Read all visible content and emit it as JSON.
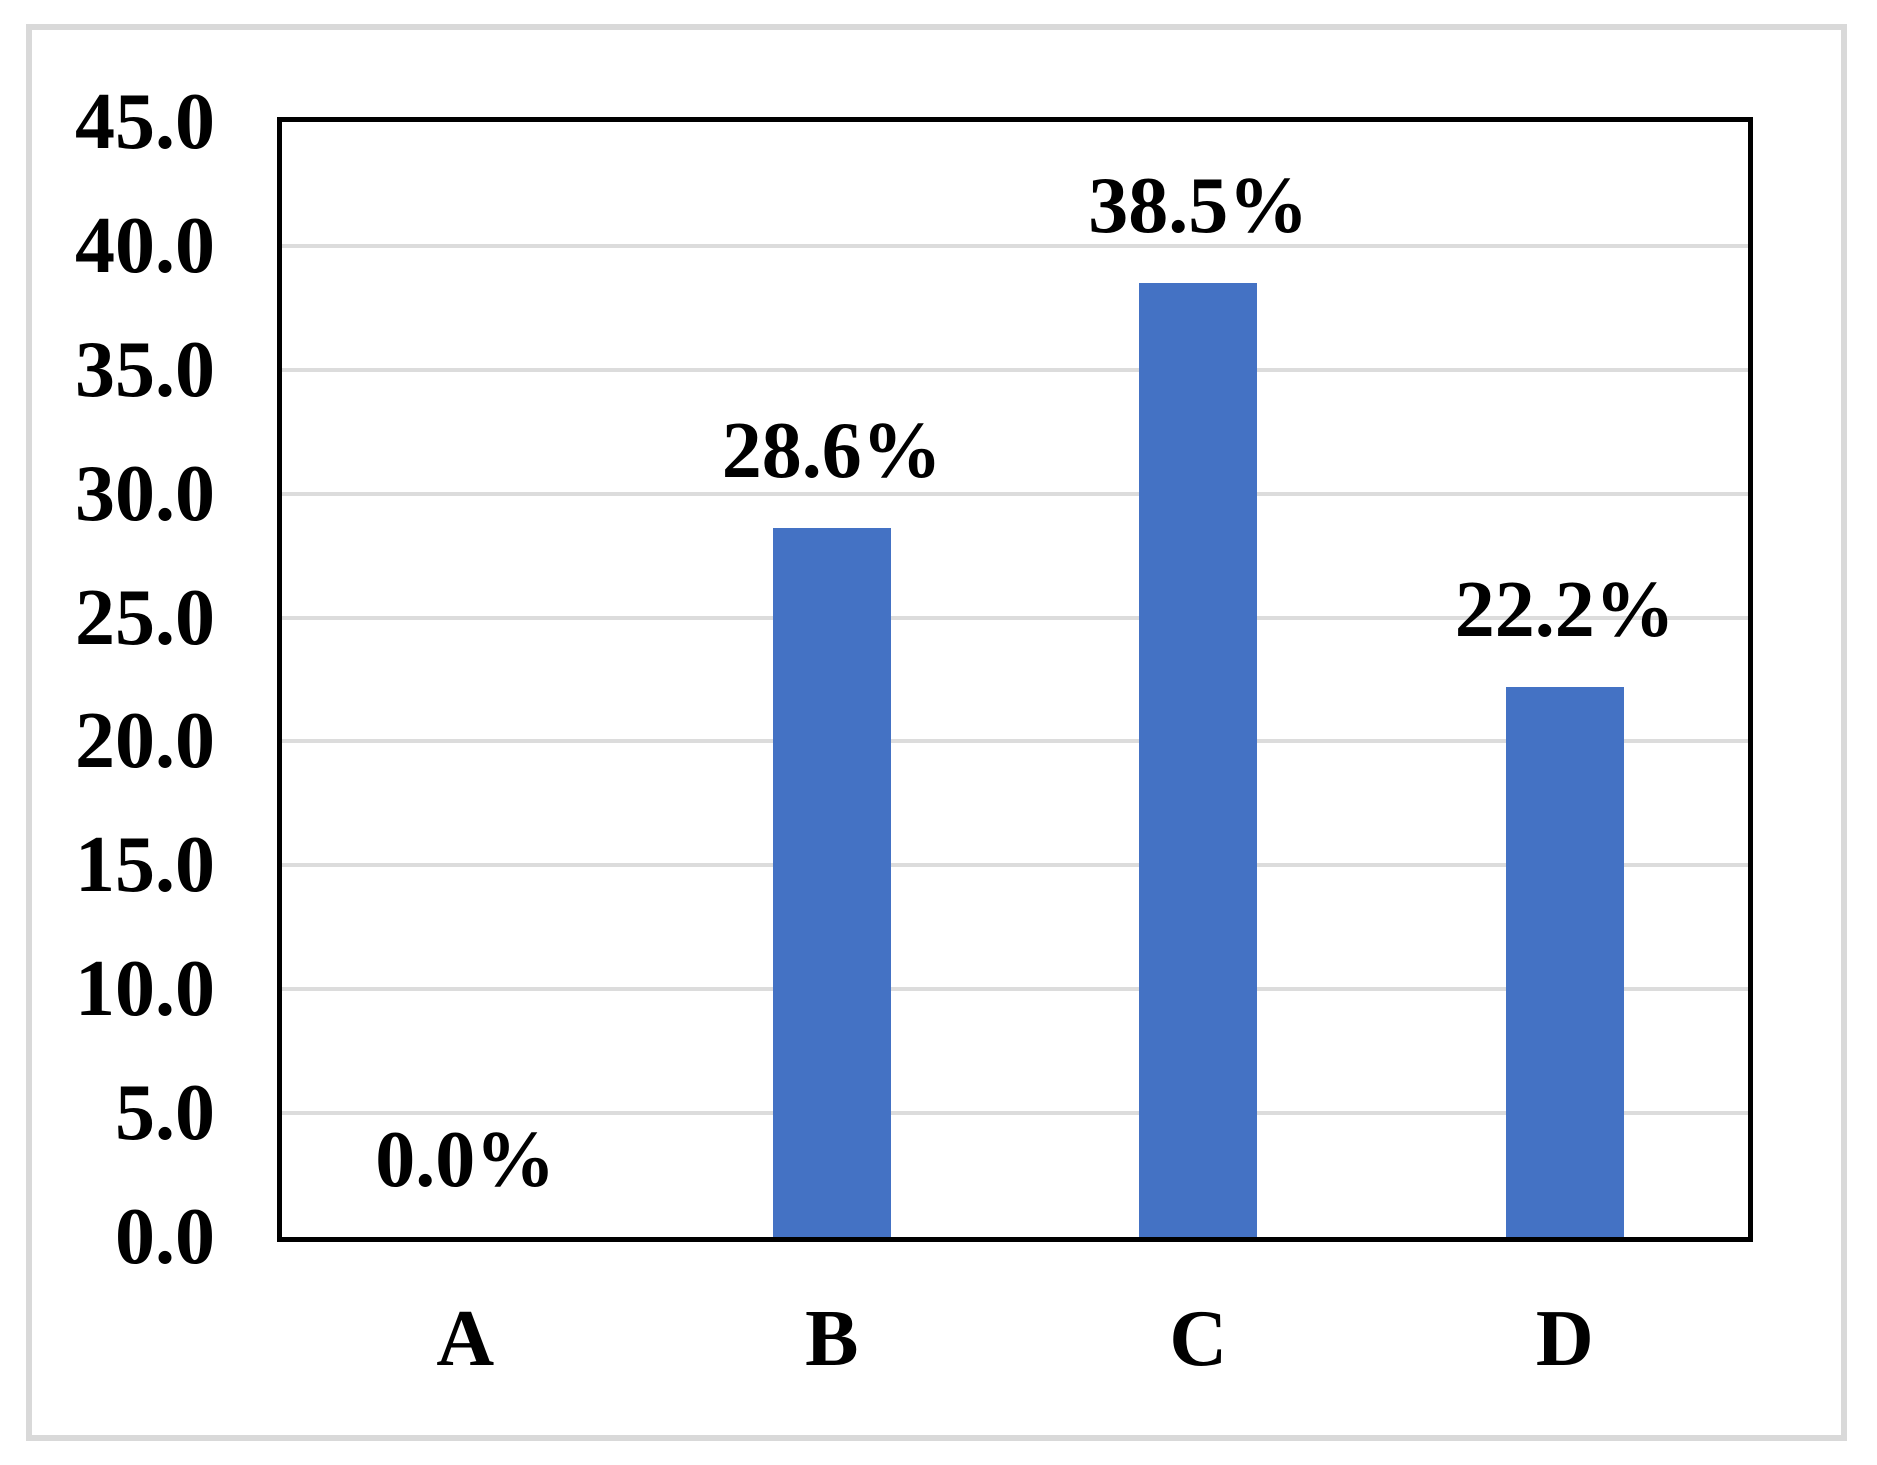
{
  "chart_data": {
    "type": "bar",
    "title": "",
    "xlabel": "",
    "ylabel": "",
    "categories": [
      "A",
      "B",
      "C",
      "D"
    ],
    "values": [
      0.0,
      28.6,
      38.5,
      22.2
    ],
    "data_labels": [
      "0.0%",
      "28.6%",
      "38.5%",
      "22.2%"
    ],
    "y_axis": {
      "min": 0,
      "max": 45,
      "step": 5,
      "tick_labels": [
        "0.0",
        "5.0",
        "10.0",
        "15.0",
        "20.0",
        "25.0",
        "30.0",
        "35.0",
        "40.0",
        "45.0"
      ]
    },
    "grid": true,
    "legend": false,
    "colors": {
      "bar": "#4472C4",
      "gridline": "#DCDCDC",
      "plot_border": "#000000",
      "outer_border": "#D9D9D9",
      "text": "#000000",
      "background": "#FFFFFF"
    }
  }
}
